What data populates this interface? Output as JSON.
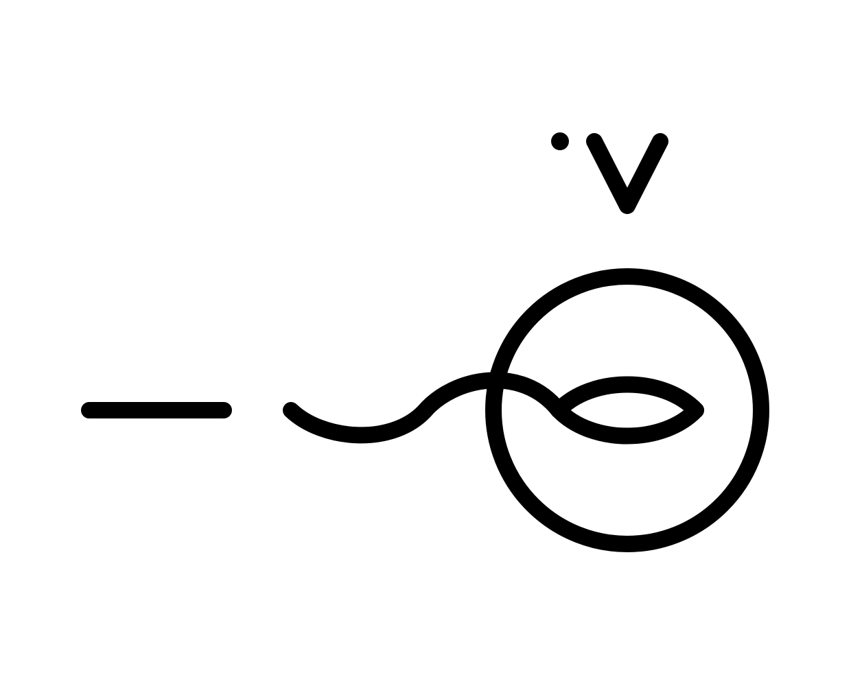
{
  "diagram": {
    "symbol": "voltage-source-symbol",
    "stroke_color": "#000000",
    "background_color": "#ffffff",
    "elements": {
      "dot": "dot-mark",
      "v_mark": "v-mark",
      "circle": "source-circle",
      "lead_line": "lead-line",
      "wave_curve": "wave-curve",
      "loop_upper": "loop-upper-arc",
      "loop_lower": "loop-lower-arc"
    }
  }
}
